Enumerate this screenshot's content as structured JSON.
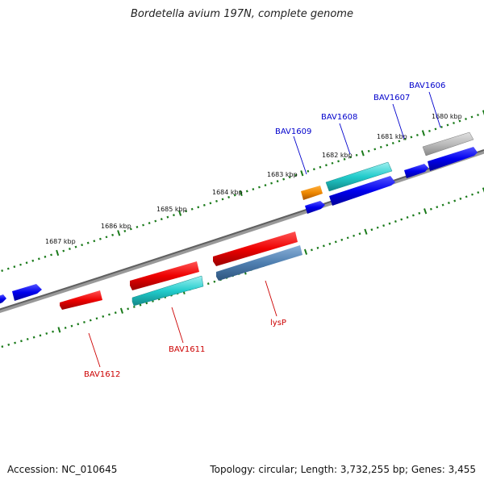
{
  "title": "Bordetella avium 197N, complete genome",
  "footer": {
    "accession": "Accession: NC_010645",
    "summary": "Topology: circular; Length: 3,732,255 bp; Genes: 3,455"
  },
  "colors": {
    "forward_label": "#0000cc",
    "reverse_label": "#cc0000",
    "tick": "#1a7a1a",
    "backbone": "#777777"
  },
  "scale_labels": [
    "1680 kbp",
    "1681 kbp",
    "1682 kbp",
    "1683 kbp",
    "1684 kbp",
    "1685 kbp",
    "1686 kbp",
    "1687 kbp"
  ],
  "gene_labels": {
    "forward": [
      "BAV1606",
      "BAV1607",
      "BAV1608",
      "BAV1609"
    ],
    "reverse": [
      "lysP",
      "BAV1611",
      "BAV1612"
    ]
  }
}
